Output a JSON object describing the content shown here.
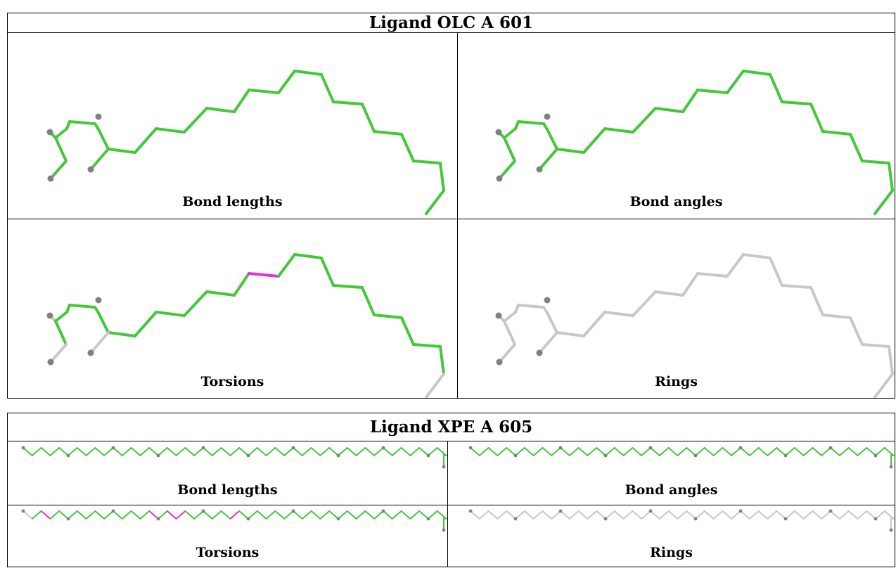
{
  "ligand1": {
    "title": "Ligand OLC A 601",
    "panels": [
      {
        "caption": "Bond lengths",
        "style": "green"
      },
      {
        "caption": "Bond angles",
        "style": "green"
      },
      {
        "caption": "Torsions",
        "style": "torsion"
      },
      {
        "caption": "Rings",
        "style": "grey"
      }
    ]
  },
  "ligand2": {
    "title": "Ligand XPE A 605",
    "panels": [
      {
        "caption": "Bond lengths",
        "style": "green"
      },
      {
        "caption": "Bond angles",
        "style": "green"
      },
      {
        "caption": "Torsions",
        "style": "torsion"
      },
      {
        "caption": "Rings",
        "style": "grey"
      }
    ]
  },
  "colors": {
    "ok_bond": "#44c83a",
    "outlier_bond": "#dd33dd",
    "unassessed_bond": "#c8c8c8",
    "atom": "#808080"
  }
}
